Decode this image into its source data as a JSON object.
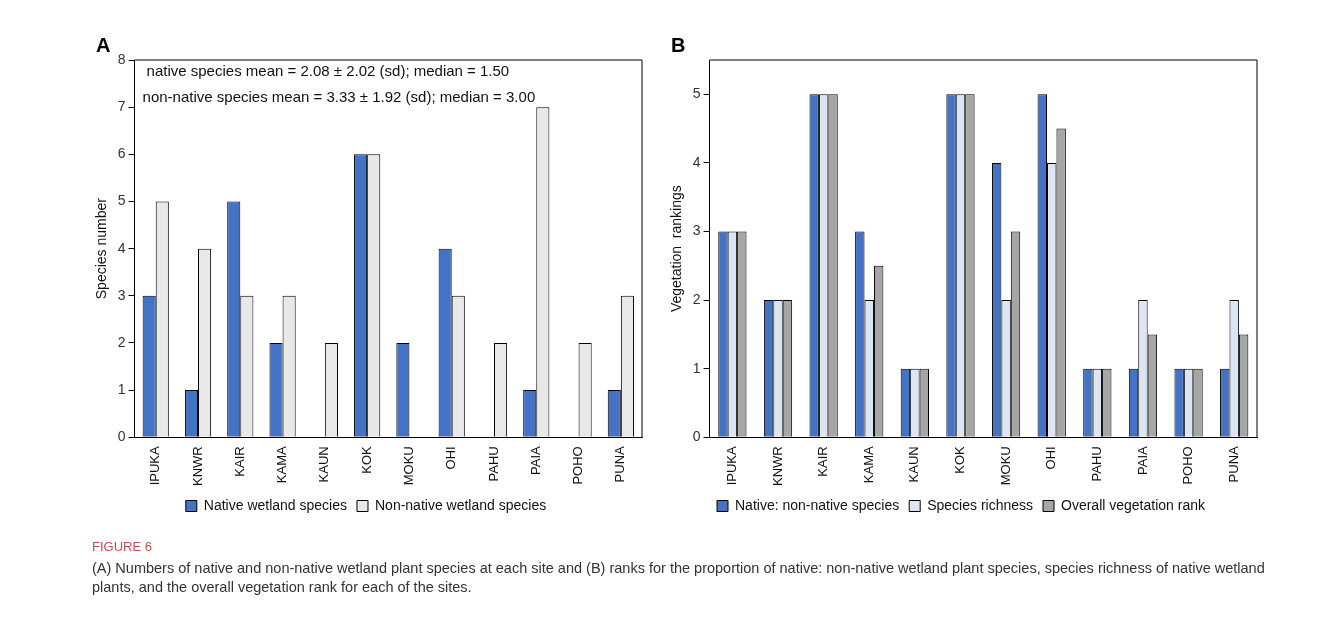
{
  "chart_data": [
    {
      "type": "bar",
      "title": "A",
      "ylabel": "Species number",
      "categories": [
        "IPUKA",
        "KNWR",
        "KAIR",
        "KAMA",
        "KAUN",
        "KOK",
        "MOKU",
        "OHI",
        "PAHU",
        "PAIA",
        "POHO",
        "PUNA"
      ],
      "series": [
        {
          "name": "Native wetland species",
          "color": "#4472c4",
          "values": [
            3,
            1,
            5,
            2,
            0,
            6,
            2,
            4,
            0,
            1,
            0,
            1
          ]
        },
        {
          "name": "Non-native wetland species",
          "color": "#e8e8e8",
          "values": [
            5,
            4,
            3,
            3,
            2,
            6,
            0,
            3,
            2,
            7,
            2,
            3
          ]
        }
      ],
      "ylim": [
        0,
        8
      ],
      "yticks": [
        0,
        1,
        2,
        3,
        4,
        5,
        6,
        7,
        8
      ],
      "grid": false,
      "legend": "bottom",
      "annotations": [
        "native species mean = 2.08 ± 2.02 (sd); median = 1.50",
        "non-native species mean = 3.33 ± 1.92 (sd); median = 3.00"
      ]
    },
    {
      "type": "bar",
      "title": "B",
      "ylabel": "Vegetation  rankings",
      "categories": [
        "IPUKA",
        "KNWR",
        "KAIR",
        "KAMA",
        "KAUN",
        "KOK",
        "MOKU",
        "OHI",
        "PAHU",
        "PAIA",
        "POHO",
        "PUNA"
      ],
      "series": [
        {
          "name": "Native: non-native species",
          "color": "#4472c4",
          "values": [
            3,
            2,
            5,
            3,
            1,
            5,
            4,
            5,
            1,
            1,
            1,
            1
          ]
        },
        {
          "name": "Species richness",
          "color": "#dce6f2",
          "values": [
            3,
            2,
            5,
            2,
            1,
            5,
            2,
            4,
            1,
            2,
            1,
            2
          ]
        },
        {
          "name": "Overall vegetation rank",
          "color": "#a6a6a6",
          "values": [
            3,
            2,
            5,
            2.5,
            1,
            5,
            3,
            4.5,
            1,
            1.5,
            1,
            1.5
          ]
        }
      ],
      "ylim": [
        0,
        5.5
      ],
      "yticks": [
        0,
        1,
        2,
        3,
        4,
        5
      ],
      "grid": false,
      "legend": "bottom",
      "annotations": [
        "FIGURE 6",
        "(A) Numbers of native and non-native wetland plant species at each site and (B) ranks for the proportion of native: non-native wetland plant species, species richness of native wetland plants, and the overall vegetation rank for each of the sites."
      ]
    }
  ]
}
